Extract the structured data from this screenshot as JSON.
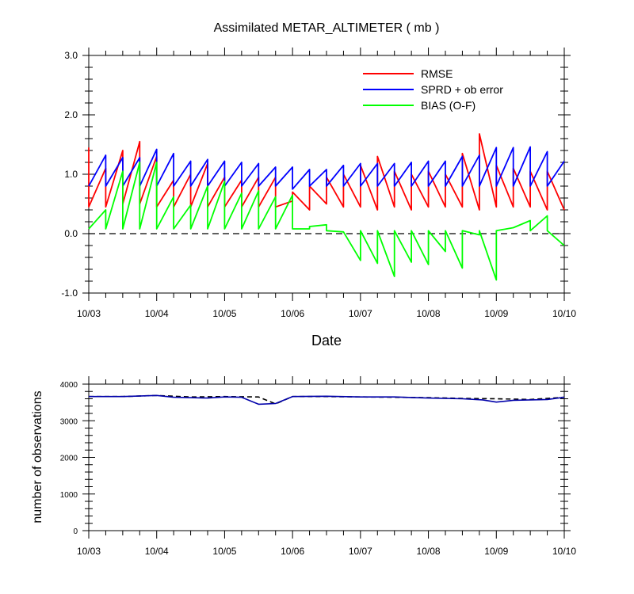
{
  "chart_data": [
    {
      "type": "line",
      "title": "Assimilated METAR_ALTIMETER ( mb )",
      "xlabel": "Date",
      "ylabel": "",
      "ylim": [
        -1.0,
        3.0
      ],
      "xticks": [
        "10/03",
        "10/04",
        "10/05",
        "10/06",
        "10/07",
        "10/08",
        "10/09",
        "10/10"
      ],
      "yticks": [
        "-1.0",
        "0.0",
        "1.0",
        "2.0",
        "3.0"
      ],
      "reference_line": {
        "y": 0.0,
        "style": "dashed"
      },
      "legend_position": "top-right",
      "x_unit": "days since 10/03",
      "series": [
        {
          "name": "RMSE",
          "color": "#ff0000",
          "x": [
            0,
            0,
            0.25,
            0.25,
            0.5,
            0.5,
            0.75,
            0.75,
            1.0,
            1.0,
            1.25,
            1.25,
            1.5,
            1.5,
            1.75,
            1.75,
            2.0,
            2.0,
            2.25,
            2.25,
            2.5,
            2.5,
            2.75,
            2.75,
            3.0,
            3.0,
            3.25,
            3.25,
            3.5,
            3.5,
            3.75,
            3.75,
            4.0,
            4.0,
            4.25,
            4.25,
            4.5,
            4.5,
            4.75,
            4.75,
            5.0,
            5.0,
            5.25,
            5.25,
            5.5,
            5.5,
            5.75,
            5.75,
            6.0,
            6.0,
            6.25,
            6.25,
            6.5,
            6.5,
            6.75,
            6.75,
            7.0
          ],
          "values": [
            1.45,
            0.45,
            1.1,
            0.45,
            1.4,
            0.5,
            1.55,
            0.5,
            1.3,
            0.45,
            0.9,
            0.45,
            1.0,
            0.45,
            1.18,
            0.45,
            0.95,
            0.45,
            0.9,
            0.45,
            0.95,
            0.45,
            0.95,
            0.45,
            0.55,
            0.7,
            0.4,
            0.8,
            0.5,
            0.95,
            0.45,
            1.0,
            0.45,
            1.15,
            0.4,
            1.3,
            0.45,
            1.05,
            0.4,
            1.0,
            0.45,
            1.05,
            0.45,
            1.0,
            0.45,
            1.35,
            0.4,
            1.68,
            0.45,
            1.15,
            0.45,
            1.1,
            0.45,
            1.05,
            0.4,
            1.05,
            0.4
          ]
        },
        {
          "name": "SPRD + ob error",
          "color": "#0000ff",
          "x": [
            0,
            0.25,
            0.25,
            0.5,
            0.5,
            0.75,
            0.75,
            1.0,
            1.0,
            1.25,
            1.25,
            1.5,
            1.5,
            1.75,
            1.75,
            2.0,
            2.0,
            2.25,
            2.25,
            2.5,
            2.5,
            2.75,
            2.75,
            3.0,
            3.0,
            3.25,
            3.25,
            3.5,
            3.5,
            3.75,
            3.75,
            4.0,
            4.0,
            4.25,
            4.25,
            4.5,
            4.5,
            4.75,
            4.75,
            5.0,
            5.0,
            5.25,
            5.25,
            5.5,
            5.5,
            5.75,
            5.75,
            6.0,
            6.0,
            6.25,
            6.25,
            6.5,
            6.5,
            6.75,
            6.75,
            7.0
          ],
          "values": [
            0.8,
            1.32,
            0.8,
            1.28,
            0.8,
            1.28,
            0.8,
            1.42,
            0.8,
            1.35,
            0.8,
            1.22,
            0.8,
            1.25,
            0.8,
            1.22,
            0.8,
            1.2,
            0.8,
            1.18,
            0.8,
            1.12,
            0.8,
            1.12,
            0.75,
            1.08,
            0.8,
            1.08,
            0.8,
            1.15,
            0.8,
            1.18,
            0.8,
            1.18,
            0.8,
            1.18,
            0.8,
            1.2,
            0.8,
            1.22,
            0.8,
            1.22,
            0.8,
            1.3,
            0.8,
            1.32,
            0.8,
            1.45,
            0.8,
            1.45,
            0.8,
            1.46,
            0.8,
            1.38,
            0.8,
            1.22
          ]
        },
        {
          "name": "BIAS (O-F)",
          "color": "#00ff00",
          "x": [
            0,
            0.25,
            0.25,
            0.5,
            0.5,
            0.75,
            0.75,
            1.0,
            1.0,
            1.25,
            1.25,
            1.5,
            1.5,
            1.75,
            1.75,
            2.0,
            2.0,
            2.25,
            2.25,
            2.5,
            2.5,
            2.75,
            2.75,
            3.0,
            3.0,
            3.25,
            3.25,
            3.5,
            3.5,
            3.75,
            4.0,
            4.0,
            4.25,
            4.25,
            4.5,
            4.5,
            4.75,
            4.75,
            5.0,
            5.0,
            5.25,
            5.25,
            5.5,
            5.5,
            5.75,
            5.75,
            6.0,
            6.0,
            6.25,
            6.5,
            6.5,
            6.75,
            6.75,
            7.0
          ],
          "values": [
            0.08,
            0.4,
            0.08,
            1.05,
            0.08,
            1.2,
            0.08,
            1.2,
            0.08,
            0.62,
            0.08,
            0.48,
            0.08,
            0.8,
            0.08,
            0.88,
            0.08,
            0.68,
            0.08,
            0.72,
            0.08,
            0.62,
            0.08,
            0.65,
            0.08,
            0.08,
            0.12,
            0.15,
            0.05,
            0.03,
            -0.45,
            0.05,
            -0.5,
            0.05,
            -0.72,
            0.05,
            -0.48,
            0.05,
            -0.52,
            0.05,
            -0.3,
            0.05,
            -0.58,
            0.05,
            -0.02,
            0.05,
            -0.78,
            0.05,
            0.1,
            0.22,
            0.05,
            0.3,
            0.05,
            -0.2
          ]
        }
      ]
    },
    {
      "type": "line",
      "title": "",
      "xlabel": "",
      "ylabel": "number of observations",
      "ylim": [
        0,
        4000
      ],
      "xticks": [
        "10/03",
        "10/04",
        "10/05",
        "10/06",
        "10/07",
        "10/08",
        "10/09",
        "10/10"
      ],
      "yticks": [
        "0",
        "1000",
        "2000",
        "3000",
        "4000"
      ],
      "x_unit": "days since 10/03",
      "series": [
        {
          "name": "",
          "color": "#000000",
          "style": "dashed",
          "x": [
            0,
            0.5,
            1.0,
            1.5,
            2.0,
            2.5,
            2.75,
            3.0,
            3.5,
            4.0,
            4.5,
            5.0,
            5.5,
            6.0,
            6.5,
            7.0
          ],
          "values": [
            3660,
            3660,
            3690,
            3650,
            3660,
            3650,
            3460,
            3660,
            3660,
            3650,
            3640,
            3630,
            3610,
            3600,
            3580,
            3640
          ]
        },
        {
          "name": "",
          "color": "#0000aa",
          "x": [
            0,
            0.5,
            1.0,
            1.25,
            1.75,
            2.0,
            2.25,
            2.5,
            2.75,
            3.0,
            3.5,
            4.0,
            4.5,
            5.0,
            5.5,
            5.8,
            6.0,
            6.25,
            6.5,
            6.75,
            7.0
          ],
          "values": [
            3660,
            3660,
            3690,
            3640,
            3620,
            3650,
            3640,
            3450,
            3470,
            3660,
            3670,
            3650,
            3650,
            3620,
            3600,
            3570,
            3510,
            3560,
            3570,
            3580,
            3640
          ]
        }
      ]
    }
  ]
}
